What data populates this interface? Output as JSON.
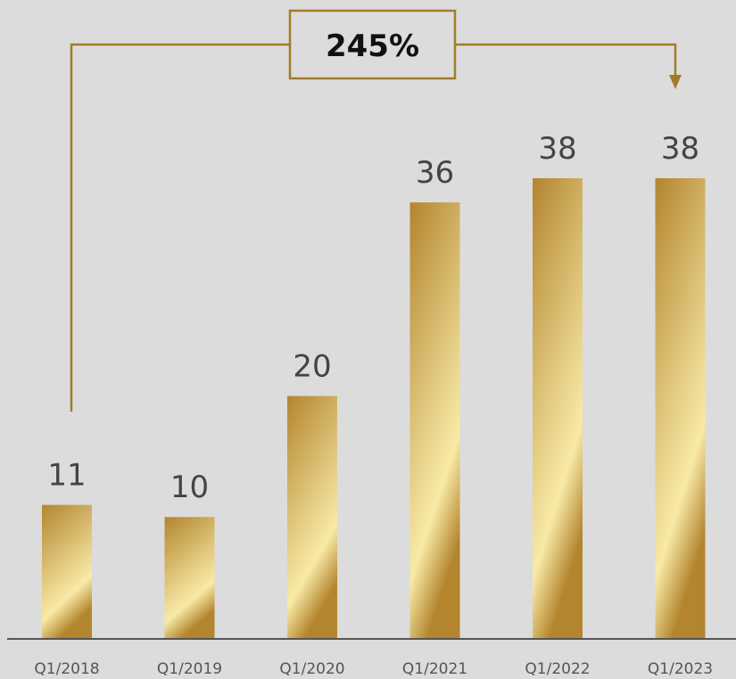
{
  "chart_data": {
    "type": "bar",
    "categories": [
      "Q1/2018",
      "Q1/2019",
      "Q1/2020",
      "Q1/2021",
      "Q1/2022",
      "Q1/2023"
    ],
    "values": [
      11,
      10,
      20,
      36,
      38,
      38
    ],
    "data_labels": [
      "11",
      "10",
      "20",
      "36",
      "38",
      "38"
    ],
    "title": "",
    "xlabel": "",
    "ylabel": "",
    "ylim": [
      0,
      38
    ],
    "grid": false,
    "legend": "none",
    "annotation": {
      "text": "245%",
      "from_category": "Q1/2018",
      "to_category": "Q1/2023",
      "style": "bracket-arrow"
    },
    "colors": {
      "background": "#dcdcdc",
      "bar_dark": "#b3852f",
      "bar_light": "#f8eaa6",
      "bracket": "#a07c2a",
      "axis": "#555555"
    }
  }
}
